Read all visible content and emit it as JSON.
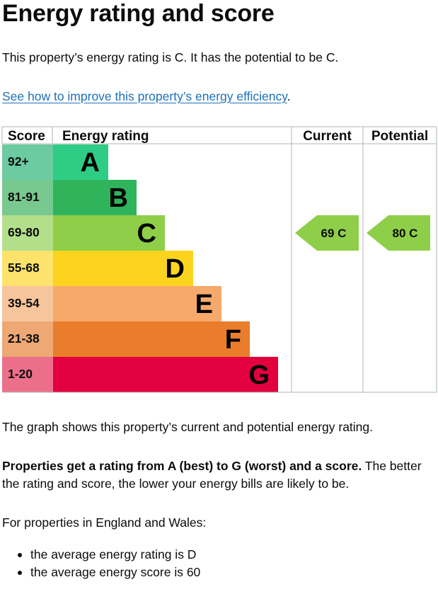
{
  "page": {
    "title": "Energy rating and score",
    "intro": "This property’s energy rating is C. It has the potential to be C.",
    "link_text": "See how to improve this property’s energy efficiency",
    "link_suffix": ".",
    "graph_caption": "The graph shows this property’s current and potential energy rating.",
    "rating_note_bold": "Properties get a rating from A (best) to G (worst) and a score.",
    "rating_note_rest": " The better the rating and score, the lower your energy bills are likely to be.",
    "regional_intro": "For properties in England and Wales:",
    "bullets": [
      "the average energy rating is D",
      "the average energy score is 60"
    ]
  },
  "chart_data": {
    "type": "bar",
    "headers": {
      "score": "Score",
      "rating": "Energy rating",
      "current": "Current",
      "potential": "Potential"
    },
    "bands": [
      {
        "letter": "A",
        "range": "92+",
        "color": "#2ecc84",
        "score_bg": "#6ccba0"
      },
      {
        "letter": "B",
        "range": "81-91",
        "color": "#2fb45c",
        "score_bg": "#78c98f"
      },
      {
        "letter": "C",
        "range": "69-80",
        "color": "#8ece48",
        "score_bg": "#b3df8b"
      },
      {
        "letter": "D",
        "range": "55-68",
        "color": "#fcd41e",
        "score_bg": "#fde36c"
      },
      {
        "letter": "E",
        "range": "39-54",
        "color": "#f6a96b",
        "score_bg": "#f7c59c"
      },
      {
        "letter": "F",
        "range": "21-38",
        "color": "#e97d2b",
        "score_bg": "#eda874"
      },
      {
        "letter": "G",
        "range": "1-20",
        "color": "#e2003e",
        "score_bg": "#ec6f8a"
      }
    ],
    "current": {
      "score": 69,
      "band": "C",
      "label": "69 C",
      "color": "#8ece48"
    },
    "potential": {
      "score": 80,
      "band": "C",
      "label": "80 C",
      "color": "#8ece48"
    },
    "grid_color": "#b1b4b6"
  }
}
